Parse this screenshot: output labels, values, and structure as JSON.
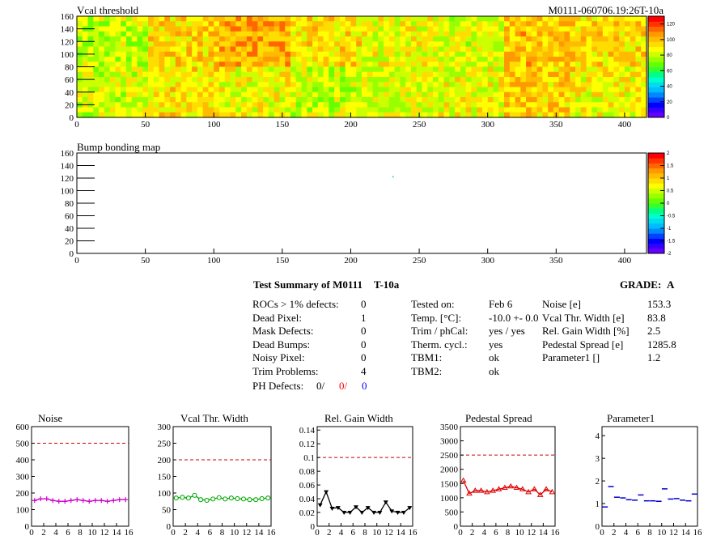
{
  "header": {
    "title": "Vcal threshold",
    "module_id": "M0111-060706.19:26T-10a"
  },
  "vcal_map": {
    "title": "Vcal threshold",
    "x_ticks": [
      "0",
      "50",
      "100",
      "150",
      "200",
      "250",
      "300",
      "350",
      "400"
    ],
    "y_ticks": [
      "0",
      "20",
      "40",
      "60",
      "80",
      "100",
      "120",
      "140",
      "160"
    ],
    "palette_ticks": [
      "0",
      "20",
      "40",
      "60",
      "80",
      "100",
      "120"
    ],
    "xlim": [
      0,
      416
    ],
    "ylim": [
      0,
      160
    ],
    "zlim": [
      0,
      130
    ]
  },
  "bump_map": {
    "title": "Bump bonding map",
    "x_ticks": [
      "0",
      "50",
      "100",
      "150",
      "200",
      "250",
      "300",
      "350",
      "400"
    ],
    "y_ticks": [
      "0",
      "20",
      "40",
      "60",
      "80",
      "100",
      "120",
      "140",
      "160"
    ],
    "palette_ticks": [
      "-2",
      "-1.5",
      "-1",
      "-0.5",
      "0",
      "0.5",
      "1",
      "1.5",
      "2"
    ],
    "xlim": [
      0,
      416
    ],
    "ylim": [
      0,
      160
    ],
    "zlim": [
      -2,
      2
    ]
  },
  "summary": {
    "title": "Test Summary of M0111",
    "test": "T-10a",
    "grade_label": "GRADE:",
    "grade": "A",
    "left": [
      {
        "label": "ROCs > 1% defects:",
        "value": "0"
      },
      {
        "label": "Dead Pixel:",
        "value": "1"
      },
      {
        "label": "Mask Defects:",
        "value": "0"
      },
      {
        "label": "Dead Bumps:",
        "value": "0"
      },
      {
        "label": "Noisy Pixel:",
        "value": "0"
      },
      {
        "label": "Trim Problems:",
        "value": "4"
      }
    ],
    "ph_label": "PH Defects:",
    "ph_values": [
      {
        "text": "0/",
        "color": "#000000"
      },
      {
        "text": "0/",
        "color": "#ff0000"
      },
      {
        "text": "0",
        "color": "#0000ff"
      }
    ],
    "middle": [
      {
        "label": "Tested on:",
        "value": "Feb 6"
      },
      {
        "label": "Temp. [°C]:",
        "value": "-10.0 +- 0.0"
      },
      {
        "label": "Trim / phCal:",
        "value": "yes / yes"
      },
      {
        "label": "Therm. cycl.:",
        "value": "yes"
      },
      {
        "label": "TBM1:",
        "value": "ok"
      },
      {
        "label": "TBM2:",
        "value": "ok"
      }
    ],
    "right": [
      {
        "label": "Noise [e]",
        "value": "153.3"
      },
      {
        "label": "Vcal Thr. Width [e]",
        "value": "83.8"
      },
      {
        "label": "Rel. Gain Width [%]",
        "value": "2.5"
      },
      {
        "label": "Pedestal Spread [e]",
        "value": "1285.8"
      },
      {
        "label": "Parameter1 []",
        "value": "1.2"
      }
    ]
  },
  "chart_data": [
    {
      "type": "line",
      "title": "Noise",
      "x": [
        0,
        1,
        2,
        3,
        4,
        5,
        6,
        7,
        8,
        9,
        10,
        11,
        12,
        13,
        14,
        15
      ],
      "values": [
        155,
        165,
        165,
        155,
        150,
        150,
        155,
        160,
        155,
        150,
        155,
        155,
        150,
        155,
        160,
        160
      ],
      "xlim": [
        0,
        16
      ],
      "ylim": [
        0,
        600
      ],
      "limit": 500,
      "color": "#cc00cc",
      "marker": "plus",
      "x_ticks": [
        "0",
        "2",
        "4",
        "6",
        "8",
        "10",
        "12",
        "14",
        "16"
      ],
      "y_ticks": [
        "0",
        "100",
        "200",
        "300",
        "400",
        "500",
        "600"
      ]
    },
    {
      "type": "line",
      "title": "Vcal Thr. Width",
      "x": [
        0,
        1,
        2,
        3,
        4,
        5,
        6,
        7,
        8,
        9,
        10,
        11,
        12,
        13,
        14,
        15
      ],
      "values": [
        85,
        87,
        85,
        93,
        80,
        78,
        82,
        86,
        82,
        85,
        83,
        82,
        80,
        80,
        83,
        85
      ],
      "xlim": [
        0,
        16
      ],
      "ylim": [
        0,
        300
      ],
      "limit": 200,
      "color": "#00aa00",
      "marker": "circle",
      "x_ticks": [
        "0",
        "2",
        "4",
        "6",
        "8",
        "10",
        "12",
        "14",
        "16"
      ],
      "y_ticks": [
        "0",
        "50",
        "100",
        "150",
        "200",
        "250",
        "300"
      ]
    },
    {
      "type": "line",
      "title": "Rel. Gain Width",
      "x": [
        0,
        1,
        2,
        3,
        4,
        5,
        6,
        7,
        8,
        9,
        10,
        11,
        12,
        13,
        14,
        15
      ],
      "values": [
        0.031,
        0.05,
        0.026,
        0.027,
        0.02,
        0.02,
        0.028,
        0.02,
        0.027,
        0.02,
        0.02,
        0.035,
        0.022,
        0.02,
        0.02,
        0.027
      ],
      "xlim": [
        0,
        16
      ],
      "ylim": [
        0,
        0.145
      ],
      "limit": 0.1,
      "color": "#000000",
      "marker": "triangle-down",
      "x_ticks": [
        "0",
        "2",
        "4",
        "6",
        "8",
        "10",
        "12",
        "14",
        "16"
      ],
      "y_ticks": [
        "0",
        "0.02",
        "0.04",
        "0.06",
        "0.08",
        "0.1",
        "0.12",
        "0.14"
      ]
    },
    {
      "type": "line",
      "title": "Pedestal Spread",
      "x": [
        0,
        1,
        2,
        3,
        4,
        5,
        6,
        7,
        8,
        9,
        10,
        11,
        12,
        13,
        14,
        15
      ],
      "values": [
        1600,
        1150,
        1250,
        1250,
        1200,
        1250,
        1300,
        1350,
        1400,
        1350,
        1300,
        1200,
        1300,
        1100,
        1300,
        1200
      ],
      "xlim": [
        0,
        16
      ],
      "ylim": [
        0,
        3500
      ],
      "limit": 2500,
      "color": "#dd0000",
      "marker": "triangle-up",
      "x_ticks": [
        "0",
        "2",
        "4",
        "6",
        "8",
        "10",
        "12",
        "14",
        "16"
      ],
      "y_ticks": [
        "0",
        "500",
        "1000",
        "1500",
        "2000",
        "2500",
        "3000",
        "3500"
      ]
    },
    {
      "type": "scatter",
      "title": "Parameter1",
      "x": [
        0,
        1,
        2,
        3,
        4,
        5,
        6,
        7,
        8,
        9,
        10,
        11,
        12,
        13,
        14,
        15
      ],
      "values": [
        0.85,
        1.75,
        1.28,
        1.25,
        1.17,
        1.15,
        1.38,
        1.12,
        1.12,
        1.1,
        1.65,
        1.2,
        1.22,
        1.15,
        1.12,
        1.42
      ],
      "xlim": [
        0,
        16
      ],
      "ylim": [
        0,
        4.4
      ],
      "color": "#0000cc",
      "marker": "hline",
      "x_ticks": [
        "0",
        "2",
        "4",
        "6",
        "8",
        "10",
        "12",
        "14",
        "16"
      ],
      "y_ticks": [
        "0",
        "1",
        "2",
        "3",
        "4"
      ]
    }
  ]
}
